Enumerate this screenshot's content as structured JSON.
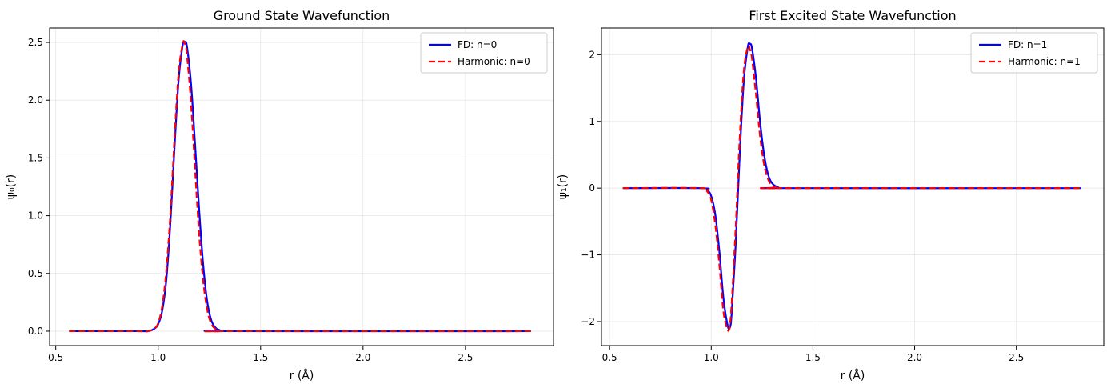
{
  "chart_data": [
    {
      "type": "line",
      "title": "Ground State Wavefunction",
      "xlabel": "r (Å)",
      "ylabel": "ψ₀(r)",
      "xlim": [
        0.47,
        2.93
      ],
      "ylim": [
        -0.125,
        2.625
      ],
      "xticks": [
        0.5,
        1.0,
        1.5,
        2.0,
        2.5
      ],
      "xtick_labels": [
        "0.5",
        "1.0",
        "1.5",
        "2.0",
        "2.5"
      ],
      "yticks": [
        0.0,
        0.5,
        1.0,
        1.5,
        2.0,
        2.5
      ],
      "ytick_labels": [
        "0.0",
        "0.5",
        "1.0",
        "1.5",
        "2.0",
        "2.5"
      ],
      "grid": true,
      "legend_position": "top-right",
      "x": [
        0.565,
        0.9,
        0.95,
        0.98,
        1.0,
        1.02,
        1.04,
        1.06,
        1.08,
        1.1,
        1.12,
        1.13,
        1.14,
        1.16,
        1.18,
        1.2,
        1.22,
        1.24,
        1.26,
        1.28,
        1.3,
        1.35,
        2.82
      ],
      "series": [
        {
          "name": "FD: n=0",
          "color": "#0000ff",
          "style": "solid",
          "values": [
            0.0,
            0.0,
            0.0,
            0.02,
            0.06,
            0.18,
            0.45,
            0.95,
            1.6,
            2.18,
            2.48,
            2.5,
            2.47,
            2.15,
            1.62,
            1.05,
            0.57,
            0.25,
            0.09,
            0.03,
            0.01,
            0.0,
            0.0
          ]
        },
        {
          "name": "Harmonic: n=0",
          "color": "#ff0000",
          "style": "dashed",
          "values": [
            0.0,
            0.0,
            0.0,
            0.02,
            0.07,
            0.22,
            0.53,
            1.03,
            1.68,
            2.24,
            2.49,
            2.49,
            2.4,
            1.98,
            1.4,
            0.84,
            0.43,
            0.18,
            0.06,
            0.02,
            0.0,
            0.0,
            0.0
          ]
        }
      ]
    },
    {
      "type": "line",
      "title": "First Excited State Wavefunction",
      "xlabel": "r (Å)",
      "ylabel": "ψ₁(r)",
      "xlim": [
        0.46,
        2.93
      ],
      "ylim": [
        -2.36,
        2.4
      ],
      "xticks": [
        0.5,
        1.0,
        1.5,
        2.0,
        2.5
      ],
      "xtick_labels": [
        "0.5",
        "1.0",
        "1.5",
        "2.0",
        "2.5"
      ],
      "yticks": [
        -2,
        -1,
        0,
        1,
        2
      ],
      "ytick_labels": [
        "−2",
        "−1",
        "0",
        "1",
        "2"
      ],
      "grid": true,
      "legend_position": "top-right",
      "x": [
        0.565,
        0.95,
        0.98,
        1.0,
        1.02,
        1.04,
        1.06,
        1.08,
        1.09,
        1.1,
        1.12,
        1.14,
        1.16,
        1.18,
        1.19,
        1.2,
        1.22,
        1.24,
        1.26,
        1.28,
        1.3,
        1.33,
        1.36,
        2.82
      ],
      "series": [
        {
          "name": "FD: n=1",
          "color": "#0000ff",
          "style": "solid",
          "values": [
            0.0,
            0.0,
            -0.03,
            -0.12,
            -0.4,
            -0.95,
            -1.65,
            -2.05,
            -2.1,
            -1.9,
            -0.85,
            0.5,
            1.6,
            2.12,
            2.16,
            2.1,
            1.65,
            1.0,
            0.5,
            0.2,
            0.07,
            0.01,
            0.0,
            0.0
          ]
        },
        {
          "name": "Harmonic: n=1",
          "color": "#ff0000",
          "style": "dashed",
          "values": [
            0.0,
            0.0,
            -0.05,
            -0.18,
            -0.55,
            -1.15,
            -1.85,
            -2.12,
            -2.08,
            -1.75,
            -0.6,
            0.75,
            1.75,
            2.12,
            2.08,
            1.95,
            1.4,
            0.78,
            0.35,
            0.13,
            0.04,
            0.0,
            0.0,
            0.0
          ]
        }
      ]
    }
  ]
}
